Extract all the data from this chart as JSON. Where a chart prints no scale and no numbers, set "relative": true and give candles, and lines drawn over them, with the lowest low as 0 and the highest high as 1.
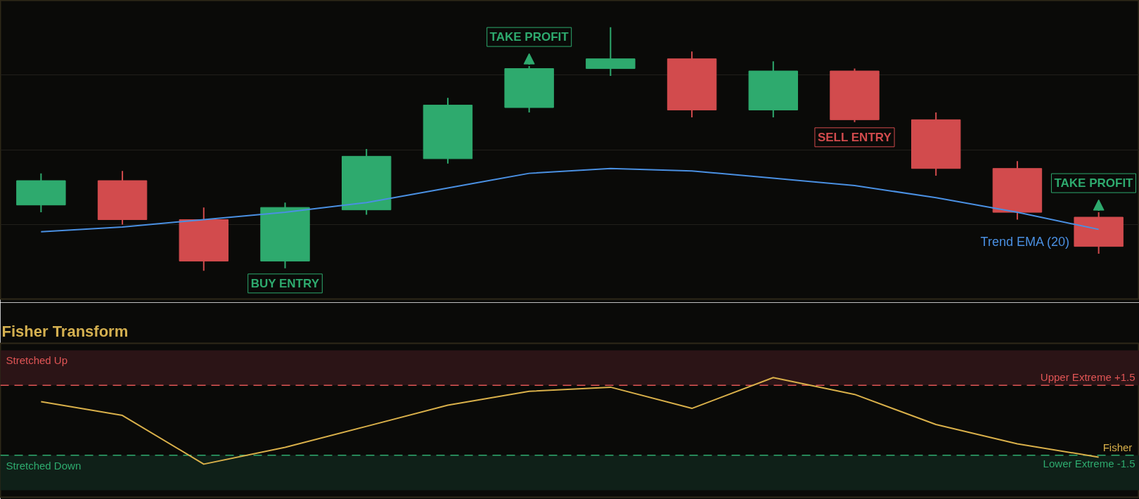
{
  "chart_data": [
    {
      "type": "candlestick",
      "relative": true,
      "categories": [
        null,
        null,
        null,
        null,
        null,
        null,
        null,
        null,
        null,
        null,
        null,
        null,
        null,
        null
      ],
      "ohlc": [
        [
          0.27,
          0.4,
          0.24,
          0.37
        ],
        [
          0.37,
          0.41,
          0.19,
          0.21
        ],
        [
          0.21,
          0.26,
          0.0,
          0.04
        ],
        [
          0.04,
          0.28,
          0.01,
          0.26
        ],
        [
          0.25,
          0.5,
          0.23,
          0.47
        ],
        [
          0.46,
          0.71,
          0.44,
          0.68
        ],
        [
          0.67,
          0.84,
          0.65,
          0.83
        ],
        [
          0.83,
          1.0,
          0.8,
          0.87
        ],
        [
          0.87,
          0.9,
          0.63,
          0.66
        ],
        [
          0.66,
          0.86,
          0.63,
          0.82
        ],
        [
          0.82,
          0.83,
          0.61,
          0.62
        ],
        [
          0.62,
          0.65,
          0.39,
          0.42
        ],
        [
          0.42,
          0.45,
          0.21,
          0.24
        ],
        [
          0.22,
          0.24,
          0.07,
          0.1
        ]
      ],
      "colors": [
        "#2eaa6e",
        "#d24b4d",
        "#d24b4d",
        "#2eaa6e",
        "#2eaa6e",
        "#2eaa6e",
        "#2eaa6e",
        "#2eaa6e",
        "#d24b4d",
        "#2eaa6e",
        "#d24b4d",
        "#d24b4d",
        "#d24b4d",
        "#d24b4d"
      ],
      "series": [
        {
          "type": "line",
          "name": "Trend EMA (20)",
          "color": "#4a90e2",
          "values": [
            0.16,
            0.18,
            0.21,
            0.24,
            0.28,
            0.34,
            0.4,
            0.42,
            0.41,
            0.38,
            0.35,
            0.3,
            0.24,
            0.17
          ]
        }
      ],
      "annotations": [
        "BUY ENTRY",
        "TAKE PROFIT",
        "SELL ENTRY",
        "TAKE PROFIT"
      ],
      "grid": "y",
      "tick_labels": false
    },
    {
      "type": "line",
      "title": "Fisher Transform",
      "categories": [
        null,
        null,
        null,
        null,
        null,
        null,
        null,
        null,
        null,
        null,
        null,
        null,
        null,
        null
      ],
      "series": [
        {
          "name": "Fisher",
          "color": "#d9b04a",
          "values": [
            0.8,
            0.21,
            -1.88,
            -1.16,
            -0.26,
            0.65,
            1.24,
            1.42,
            0.51,
            1.83,
            1.11,
            -0.18,
            -1.01,
            -1.58
          ]
        }
      ],
      "ylim": [
        -3.3,
        3.3
      ],
      "ref_lines": [
        {
          "axis": "y",
          "value": 1.5,
          "label": "Upper Extreme +1.5",
          "color": "#e05555",
          "line_style": "dashed"
        },
        {
          "axis": "y",
          "value": -1.5,
          "label": "Lower Extreme -1.5",
          "color": "#2eaa6e",
          "line_style": "dashed"
        }
      ],
      "bands": [
        {
          "axis": "y",
          "from": 1.5,
          "to": 3,
          "label": "Stretched Up",
          "color": "#2b1416"
        },
        {
          "axis": "y",
          "from": -3,
          "to": -1.5,
          "label": "Stretched Down",
          "color": "#0f2018"
        }
      ],
      "tick_labels": false
    }
  ]
}
